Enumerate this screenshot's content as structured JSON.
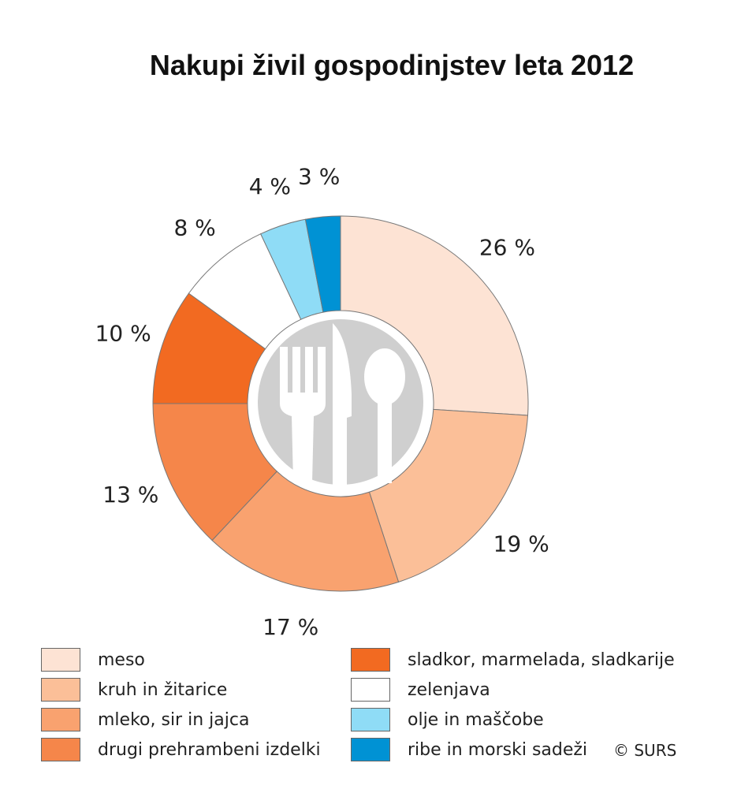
{
  "chart_data": {
    "type": "pie",
    "style": "donut",
    "title": "Nakupi živil gospodinjstev leta 2012",
    "categories": [
      "meso",
      "kruh in žitarice",
      "mleko, sir in jajca",
      "drugi prehrambeni izdelki",
      "sladkor, marmelada, sladkarije",
      "zelenjava",
      "olje in maščobe",
      "ribe in morski sadeži"
    ],
    "values": [
      26,
      19,
      17,
      13,
      10,
      8,
      4,
      3
    ],
    "value_labels": [
      "26 %",
      "19 %",
      "17 %",
      "13 %",
      "10 %",
      "8 %",
      "4 %",
      "3 %"
    ],
    "colors": [
      "#fde3d4",
      "#fbbf98",
      "#f9a26f",
      "#f5864a",
      "#f26a21",
      "#ffffff",
      "#8fdcf6",
      "#0092d4"
    ],
    "center_icon": "cutlery-icon",
    "legend_position": "bottom",
    "source": "© SURS"
  }
}
